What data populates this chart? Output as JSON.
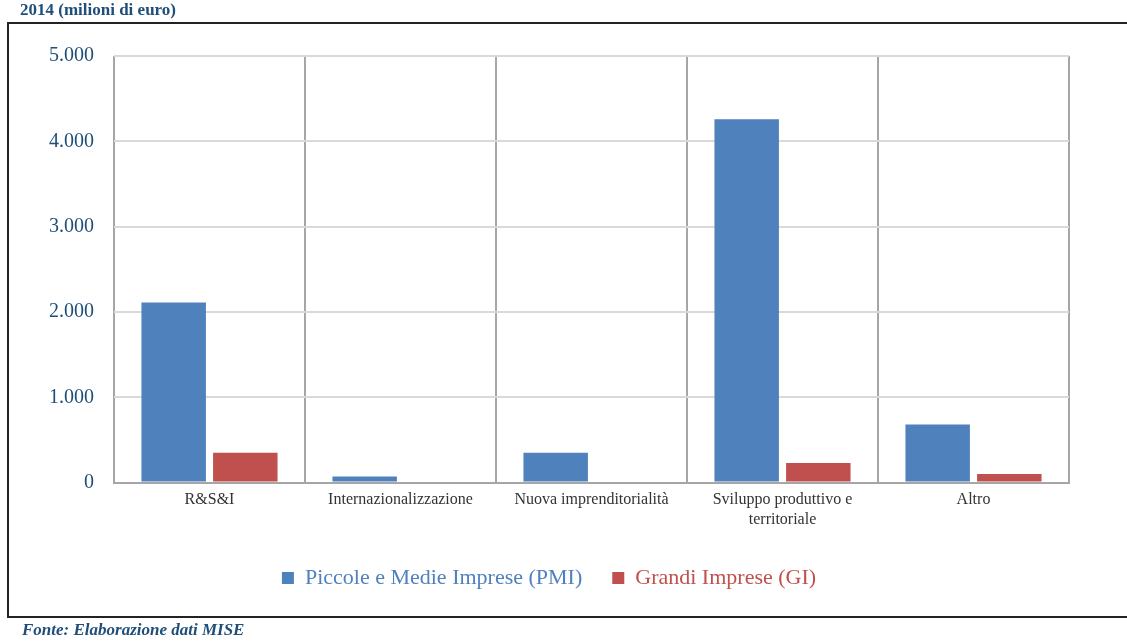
{
  "chart_data": {
    "type": "bar",
    "title": "2014 (milioni di euro)",
    "categories": [
      "R&S&I",
      "Internazionalizzazione",
      "Nuova imprenditorialità",
      "Sviluppo produttivo e territoriale",
      "Altro"
    ],
    "series": [
      {
        "name": "Piccole e Medie Imprese (PMI)",
        "color": "#4f81bd",
        "values": [
          2110,
          72,
          350,
          4260,
          680
        ]
      },
      {
        "name": "Grandi Imprese (GI)",
        "color": "#c0504d",
        "values": [
          350,
          0,
          0,
          230,
          100
        ]
      }
    ],
    "ylim": [
      0,
      5000
    ],
    "yticks": [
      0,
      {
        "value": 1000,
        "label": "1.000"
      },
      {
        "value": 2000,
        "label": "2.000"
      },
      {
        "value": 3000,
        "label": "3.000"
      },
      {
        "value": 4000,
        "label": "4.000"
      },
      {
        "value": 5000,
        "label": "5.000"
      }
    ],
    "grid": true,
    "legend": "bottom",
    "annotations": [
      "Fonte: Elaborazione dati MISE"
    ]
  }
}
